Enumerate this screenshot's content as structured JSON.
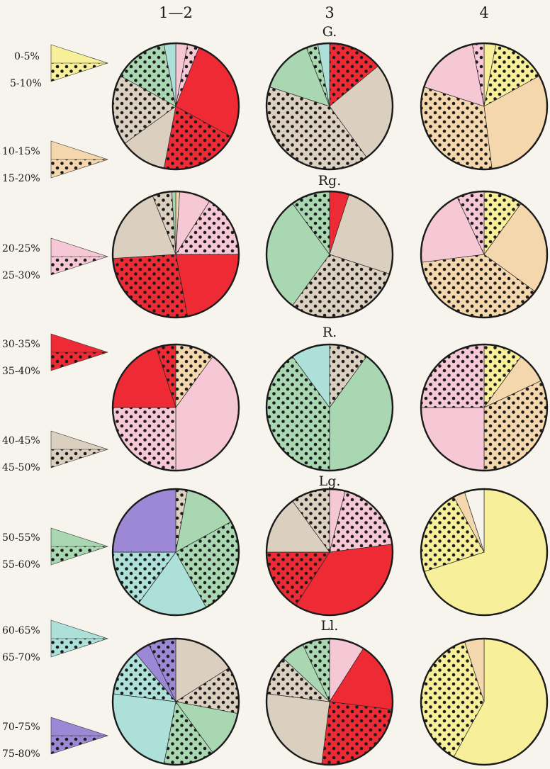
{
  "column_headers": [
    "1—2",
    "3",
    "4"
  ],
  "row_labels": [
    "G.",
    "Rg.",
    "R.",
    "Lg.",
    "Ll."
  ],
  "legend": [
    {
      "range_plain": "0-5%",
      "range_dotted": "5-10%",
      "color": "#f7ef9a"
    },
    {
      "range_plain": "10-15%",
      "range_dotted": "15-20%",
      "color": "#f4d7ad"
    },
    {
      "range_plain": "20-25%",
      "range_dotted": "25-30%",
      "color": "#f6c8d6"
    },
    {
      "range_plain": "30-35%",
      "range_dotted": "35-40%",
      "color": "#ee2b35"
    },
    {
      "range_plain": "40-45%",
      "range_dotted": "45-50%",
      "color": "#dbcfbf"
    },
    {
      "range_plain": "50-55%",
      "range_dotted": "55-60%",
      "color": "#a9d7b2"
    },
    {
      "range_plain": "60-65%",
      "range_dotted": "65-70%",
      "color": "#ace0d8"
    },
    {
      "range_plain": "70-75%",
      "range_dotted": "75-80%",
      "color": "#9d88d6"
    }
  ],
  "colors": {
    "yellow": "#f7ef9a",
    "peach": "#f4d7ad",
    "pink": "#f6c8d6",
    "red": "#ee2b35",
    "beige": "#dbcfbf",
    "green": "#a9d7b2",
    "cyan": "#ace0d8",
    "purple": "#9d88d6",
    "white": "#f6f4ec"
  },
  "chart_data": {
    "type": "pie",
    "note_scale": "Each wedge spans a fraction of the full circle; fill colour encodes a percentage range, dotted fill = upper half of the range (see legend).",
    "columns": [
      "1—2",
      "3",
      "4"
    ],
    "rows": [
      "G.",
      "Rg.",
      "R.",
      "Lg.",
      "Ll."
    ],
    "pies": [
      {
        "row": "G.",
        "column": "1—2",
        "slices": [
          {
            "color": "pink",
            "dotted": false,
            "fraction": 0.03
          },
          {
            "color": "pink",
            "dotted": true,
            "fraction": 0.03
          },
          {
            "color": "red",
            "dotted": false,
            "fraction": 0.27
          },
          {
            "color": "red",
            "dotted": true,
            "fraction": 0.2
          },
          {
            "color": "beige",
            "dotted": false,
            "fraction": 0.12
          },
          {
            "color": "beige",
            "dotted": true,
            "fraction": 0.18
          },
          {
            "color": "green",
            "dotted": true,
            "fraction": 0.14
          },
          {
            "color": "cyan",
            "dotted": false,
            "fraction": 0.03
          }
        ]
      },
      {
        "row": "G.",
        "column": "3",
        "slices": [
          {
            "color": "red",
            "dotted": true,
            "fraction": 0.14
          },
          {
            "color": "beige",
            "dotted": false,
            "fraction": 0.26
          },
          {
            "color": "beige",
            "dotted": true,
            "fraction": 0.4
          },
          {
            "color": "green",
            "dotted": false,
            "fraction": 0.14
          },
          {
            "color": "green",
            "dotted": true,
            "fraction": 0.03
          },
          {
            "color": "cyan",
            "dotted": false,
            "fraction": 0.03
          }
        ]
      },
      {
        "row": "G.",
        "column": "4",
        "slices": [
          {
            "color": "yellow",
            "dotted": false,
            "fraction": 0.03
          },
          {
            "color": "yellow",
            "dotted": true,
            "fraction": 0.14
          },
          {
            "color": "peach",
            "dotted": false,
            "fraction": 0.31
          },
          {
            "color": "peach",
            "dotted": true,
            "fraction": 0.32
          },
          {
            "color": "pink",
            "dotted": false,
            "fraction": 0.17
          },
          {
            "color": "pink",
            "dotted": true,
            "fraction": 0.03
          }
        ]
      },
      {
        "row": "Rg.",
        "column": "1—2",
        "slices": [
          {
            "color": "peach",
            "dotted": false,
            "fraction": 0.01
          },
          {
            "color": "pink",
            "dotted": false,
            "fraction": 0.08
          },
          {
            "color": "pink",
            "dotted": true,
            "fraction": 0.16
          },
          {
            "color": "red",
            "dotted": false,
            "fraction": 0.22
          },
          {
            "color": "red",
            "dotted": true,
            "fraction": 0.27
          },
          {
            "color": "beige",
            "dotted": false,
            "fraction": 0.2
          },
          {
            "color": "beige",
            "dotted": true,
            "fraction": 0.05
          },
          {
            "color": "green",
            "dotted": false,
            "fraction": 0.01
          }
        ]
      },
      {
        "row": "Rg.",
        "column": "3",
        "slices": [
          {
            "color": "red",
            "dotted": false,
            "fraction": 0.05
          },
          {
            "color": "beige",
            "dotted": false,
            "fraction": 0.25
          },
          {
            "color": "beige",
            "dotted": true,
            "fraction": 0.3
          },
          {
            "color": "green",
            "dotted": false,
            "fraction": 0.3
          },
          {
            "color": "green",
            "dotted": true,
            "fraction": 0.1
          }
        ]
      },
      {
        "row": "Rg.",
        "column": "4",
        "slices": [
          {
            "color": "yellow",
            "dotted": true,
            "fraction": 0.1
          },
          {
            "color": "peach",
            "dotted": false,
            "fraction": 0.25
          },
          {
            "color": "peach",
            "dotted": true,
            "fraction": 0.38
          },
          {
            "color": "pink",
            "dotted": false,
            "fraction": 0.2
          },
          {
            "color": "pink",
            "dotted": true,
            "fraction": 0.07
          }
        ]
      },
      {
        "row": "R.",
        "column": "1—2",
        "slices": [
          {
            "color": "peach",
            "dotted": true,
            "fraction": 0.1
          },
          {
            "color": "pink",
            "dotted": false,
            "fraction": 0.4
          },
          {
            "color": "pink",
            "dotted": true,
            "fraction": 0.25
          },
          {
            "color": "red",
            "dotted": false,
            "fraction": 0.2
          },
          {
            "color": "red",
            "dotted": true,
            "fraction": 0.05
          }
        ]
      },
      {
        "row": "R.",
        "column": "3",
        "slices": [
          {
            "color": "beige",
            "dotted": true,
            "fraction": 0.1
          },
          {
            "color": "green",
            "dotted": false,
            "fraction": 0.4
          },
          {
            "color": "green",
            "dotted": true,
            "fraction": 0.4
          },
          {
            "color": "cyan",
            "dotted": false,
            "fraction": 0.1
          }
        ]
      },
      {
        "row": "R.",
        "column": "4",
        "slices": [
          {
            "color": "yellow",
            "dotted": true,
            "fraction": 0.1
          },
          {
            "color": "peach",
            "dotted": false,
            "fraction": 0.08
          },
          {
            "color": "peach",
            "dotted": true,
            "fraction": 0.32
          },
          {
            "color": "pink",
            "dotted": false,
            "fraction": 0.25
          },
          {
            "color": "pink",
            "dotted": true,
            "fraction": 0.25
          }
        ]
      },
      {
        "row": "Lg.",
        "column": "1—2",
        "slices": [
          {
            "color": "beige",
            "dotted": true,
            "fraction": 0.03
          },
          {
            "color": "green",
            "dotted": false,
            "fraction": 0.14
          },
          {
            "color": "green",
            "dotted": true,
            "fraction": 0.25
          },
          {
            "color": "cyan",
            "dotted": false,
            "fraction": 0.18
          },
          {
            "color": "cyan",
            "dotted": true,
            "fraction": 0.15
          },
          {
            "color": "purple",
            "dotted": false,
            "fraction": 0.25
          }
        ]
      },
      {
        "row": "Lg.",
        "column": "3",
        "slices": [
          {
            "color": "pink",
            "dotted": false,
            "fraction": 0.04
          },
          {
            "color": "pink",
            "dotted": true,
            "fraction": 0.19
          },
          {
            "color": "red",
            "dotted": false,
            "fraction": 0.36
          },
          {
            "color": "red",
            "dotted": true,
            "fraction": 0.16
          },
          {
            "color": "beige",
            "dotted": false,
            "fraction": 0.15
          },
          {
            "color": "beige",
            "dotted": true,
            "fraction": 0.1
          }
        ]
      },
      {
        "row": "Lg.",
        "column": "4",
        "slices": [
          {
            "color": "yellow",
            "dotted": false,
            "fraction": 0.7
          },
          {
            "color": "yellow",
            "dotted": true,
            "fraction": 0.22
          },
          {
            "color": "peach",
            "dotted": false,
            "fraction": 0.03
          },
          {
            "color": "white",
            "dotted": false,
            "fraction": 0.05
          }
        ]
      },
      {
        "row": "Ll.",
        "column": "1—2",
        "slices": [
          {
            "color": "beige",
            "dotted": false,
            "fraction": 0.16
          },
          {
            "color": "beige",
            "dotted": true,
            "fraction": 0.12
          },
          {
            "color": "green",
            "dotted": false,
            "fraction": 0.12
          },
          {
            "color": "green",
            "dotted": true,
            "fraction": 0.13
          },
          {
            "color": "cyan",
            "dotted": false,
            "fraction": 0.24
          },
          {
            "color": "cyan",
            "dotted": true,
            "fraction": 0.12
          },
          {
            "color": "purple",
            "dotted": false,
            "fraction": 0.04
          },
          {
            "color": "purple",
            "dotted": true,
            "fraction": 0.07
          }
        ]
      },
      {
        "row": "Ll.",
        "column": "3",
        "slices": [
          {
            "color": "pink",
            "dotted": false,
            "fraction": 0.09
          },
          {
            "color": "red",
            "dotted": false,
            "fraction": 0.18
          },
          {
            "color": "red",
            "dotted": true,
            "fraction": 0.25
          },
          {
            "color": "beige",
            "dotted": false,
            "fraction": 0.25
          },
          {
            "color": "beige",
            "dotted": true,
            "fraction": 0.1
          },
          {
            "color": "green",
            "dotted": false,
            "fraction": 0.06
          },
          {
            "color": "green",
            "dotted": true,
            "fraction": 0.07
          }
        ]
      },
      {
        "row": "Ll.",
        "column": "4",
        "slices": [
          {
            "color": "yellow",
            "dotted": false,
            "fraction": 0.58
          },
          {
            "color": "yellow",
            "dotted": true,
            "fraction": 0.37
          },
          {
            "color": "peach",
            "dotted": false,
            "fraction": 0.05
          }
        ]
      }
    ]
  }
}
